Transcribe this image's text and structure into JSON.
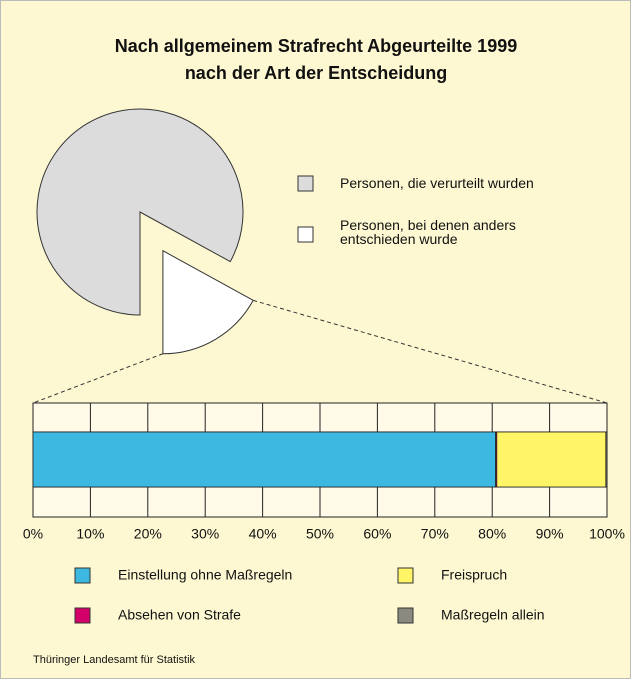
{
  "chart_data": [
    {
      "type": "pie",
      "title": "Nach allgemeinem Strafrecht Abgeurteilte 1999",
      "subtitle": "nach der Art der Entscheidung",
      "categories": [
        "Personen, die verurteilt wurden",
        "Personen, bei denen anders entschieden wurde"
      ],
      "values": [
        83,
        17
      ],
      "colors": [
        "#dcdcdc",
        "#ffffff"
      ]
    },
    {
      "type": "bar",
      "orientation": "horizontal",
      "stacked": true,
      "series": [
        {
          "name": "Einstellung ohne Maßregeln",
          "color": "#3db8e0",
          "values": [
            80.6
          ]
        },
        {
          "name": "Absehen von Strafe",
          "color": "#d4006a",
          "values": [
            0.2
          ]
        },
        {
          "name": "Freispruch",
          "color": "#fff566",
          "values": [
            19
          ]
        },
        {
          "name": "Maßregeln allein",
          "color": "#8a8a80",
          "values": [
            0.2
          ]
        }
      ],
      "xlim": [
        0,
        100
      ],
      "xticks": [
        {
          "value": 0,
          "label": "0%"
        },
        {
          "value": 10,
          "label": "10%"
        },
        {
          "value": 20,
          "label": "20%"
        },
        {
          "value": 30,
          "label": "30%"
        },
        {
          "value": 40,
          "label": "40%"
        },
        {
          "value": 50,
          "label": "50%"
        },
        {
          "value": 60,
          "label": "60%"
        },
        {
          "value": 70,
          "label": "70%"
        },
        {
          "value": 80,
          "label": "80%"
        },
        {
          "value": 90,
          "label": "90%"
        },
        {
          "value": 100,
          "label": "100%"
        }
      ],
      "grid": true
    }
  ],
  "source": "Thüringer Landesamt für Statistik"
}
